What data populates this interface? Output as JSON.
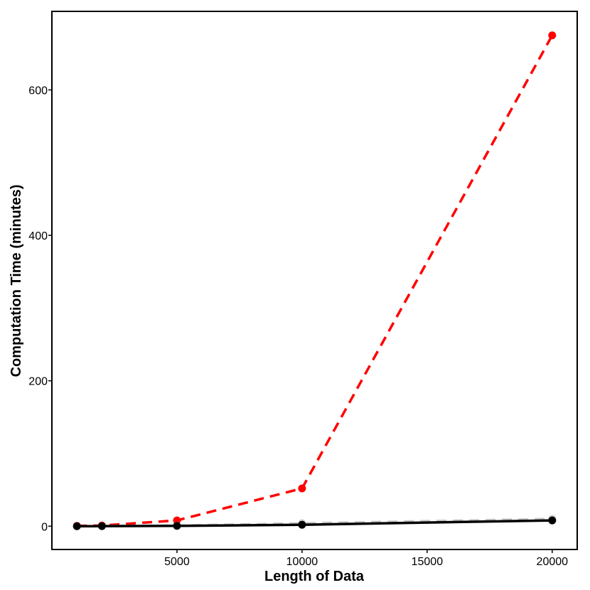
{
  "chart_data": {
    "type": "line",
    "title": "",
    "xlabel": "Length of Data",
    "ylabel": "Computation Time (minutes)",
    "xlim": [
      0,
      21000
    ],
    "ylim": [
      -32,
      708
    ],
    "x_ticks": [
      5000,
      10000,
      15000,
      20000
    ],
    "y_ticks": [
      0,
      200,
      400,
      600
    ],
    "grid": false,
    "legend": "none",
    "x": [
      1000,
      2000,
      5000,
      10000,
      20000
    ],
    "series": [
      {
        "values": [
          0.5,
          1,
          8,
          52,
          675
        ],
        "color": "#ff0000",
        "style": "dashed"
      },
      {
        "values": [
          0.1,
          0.2,
          0.8,
          4,
          10
        ],
        "color": "#c8c8c8",
        "style": "dashed"
      },
      {
        "values": [
          0,
          0.1,
          0.5,
          2,
          8
        ],
        "color": "#000000",
        "style": "solid"
      }
    ]
  }
}
